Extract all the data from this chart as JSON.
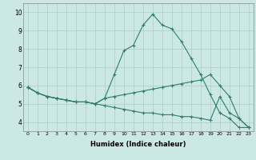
{
  "xlabel": "Humidex (Indice chaleur)",
  "x": [
    0,
    1,
    2,
    3,
    4,
    5,
    6,
    7,
    8,
    9,
    10,
    11,
    12,
    13,
    14,
    15,
    16,
    17,
    18,
    19,
    20,
    21,
    22,
    23
  ],
  "line_max": [
    5.9,
    5.6,
    5.4,
    5.3,
    5.2,
    5.1,
    5.1,
    5.0,
    5.3,
    6.6,
    7.9,
    8.2,
    9.3,
    9.9,
    9.3,
    9.1,
    8.4,
    7.5,
    6.6,
    5.5,
    4.5,
    4.2,
    3.7,
    3.7
  ],
  "line_min": [
    5.9,
    5.6,
    5.4,
    5.3,
    5.2,
    5.1,
    5.1,
    5.0,
    4.9,
    4.8,
    4.7,
    4.6,
    4.5,
    4.5,
    4.4,
    4.4,
    4.3,
    4.3,
    4.2,
    4.1,
    5.4,
    4.5,
    4.2,
    3.7
  ],
  "line_mean": [
    5.9,
    5.6,
    5.4,
    5.3,
    5.2,
    5.1,
    5.1,
    5.0,
    5.3,
    5.4,
    5.5,
    5.6,
    5.7,
    5.8,
    5.9,
    6.0,
    6.1,
    6.2,
    6.3,
    6.6,
    6.0,
    5.4,
    4.2,
    3.7
  ],
  "line_color": "#2d7d70",
  "bg_color": "#cce8e4",
  "grid_color": "#aacccc",
  "ylim": [
    3.5,
    10.5
  ],
  "xlim": [
    -0.5,
    23.5
  ],
  "yticks": [
    4,
    5,
    6,
    7,
    8,
    9,
    10
  ]
}
